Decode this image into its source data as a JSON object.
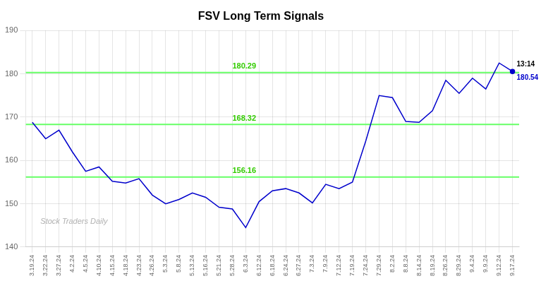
{
  "chart_data": {
    "type": "line",
    "title": "FSV Long Term Signals",
    "categories": [
      "3.19.24",
      "3.22.24",
      "3.27.24",
      "4.2.24",
      "4.5.24",
      "4.10.24",
      "4.15.24",
      "4.18.24",
      "4.23.24",
      "4.26.24",
      "5.3.24",
      "5.8.24",
      "5.13.24",
      "5.16.24",
      "5.21.24",
      "5.28.24",
      "6.3.24",
      "6.12.24",
      "6.18.24",
      "6.24.24",
      "6.27.24",
      "7.3.24",
      "7.9.24",
      "7.12.24",
      "7.19.24",
      "7.24.24",
      "7.29.24",
      "8.2.24",
      "8.8.24",
      "8.14.24",
      "8.19.24",
      "8.26.24",
      "8.29.24",
      "9.4.24",
      "9.9.24",
      "9.12.24",
      "9.17.24"
    ],
    "values": [
      168.8,
      165.0,
      167.0,
      162.0,
      157.5,
      158.5,
      155.2,
      154.8,
      155.8,
      152.0,
      150.0,
      151.0,
      152.5,
      151.5,
      149.2,
      148.8,
      144.5,
      150.5,
      153.0,
      153.5,
      152.5,
      150.2,
      154.5,
      153.5,
      155.0,
      164.5,
      175.0,
      174.5,
      169.0,
      168.8,
      171.5,
      178.5,
      175.5,
      179.0,
      176.5,
      182.5,
      180.54
    ],
    "color": "#0000cc",
    "ylim": [
      140,
      190
    ],
    "yticks": [
      140,
      150,
      160,
      170,
      180,
      190
    ],
    "grid": true,
    "hlines": [
      {
        "value": 180.29,
        "color": "#66ff66"
      },
      {
        "value": 168.32,
        "color": "#66ff66"
      },
      {
        "value": 156.16,
        "color": "#66ff66"
      }
    ],
    "annotations": [
      {
        "text": "180.29",
        "y": 180.29,
        "color": "#33cc00"
      },
      {
        "text": "168.32",
        "y": 168.32,
        "color": "#33cc00"
      },
      {
        "text": "156.16",
        "y": 156.16,
        "color": "#33cc00"
      },
      {
        "text": "13:14",
        "x": "9.17.24",
        "color": "#000000"
      },
      {
        "text": "180.54",
        "x": "9.17.24",
        "color": "#0000cc"
      },
      {
        "text": "Stock Traders Daily",
        "color": "#b0b0b0"
      }
    ]
  }
}
